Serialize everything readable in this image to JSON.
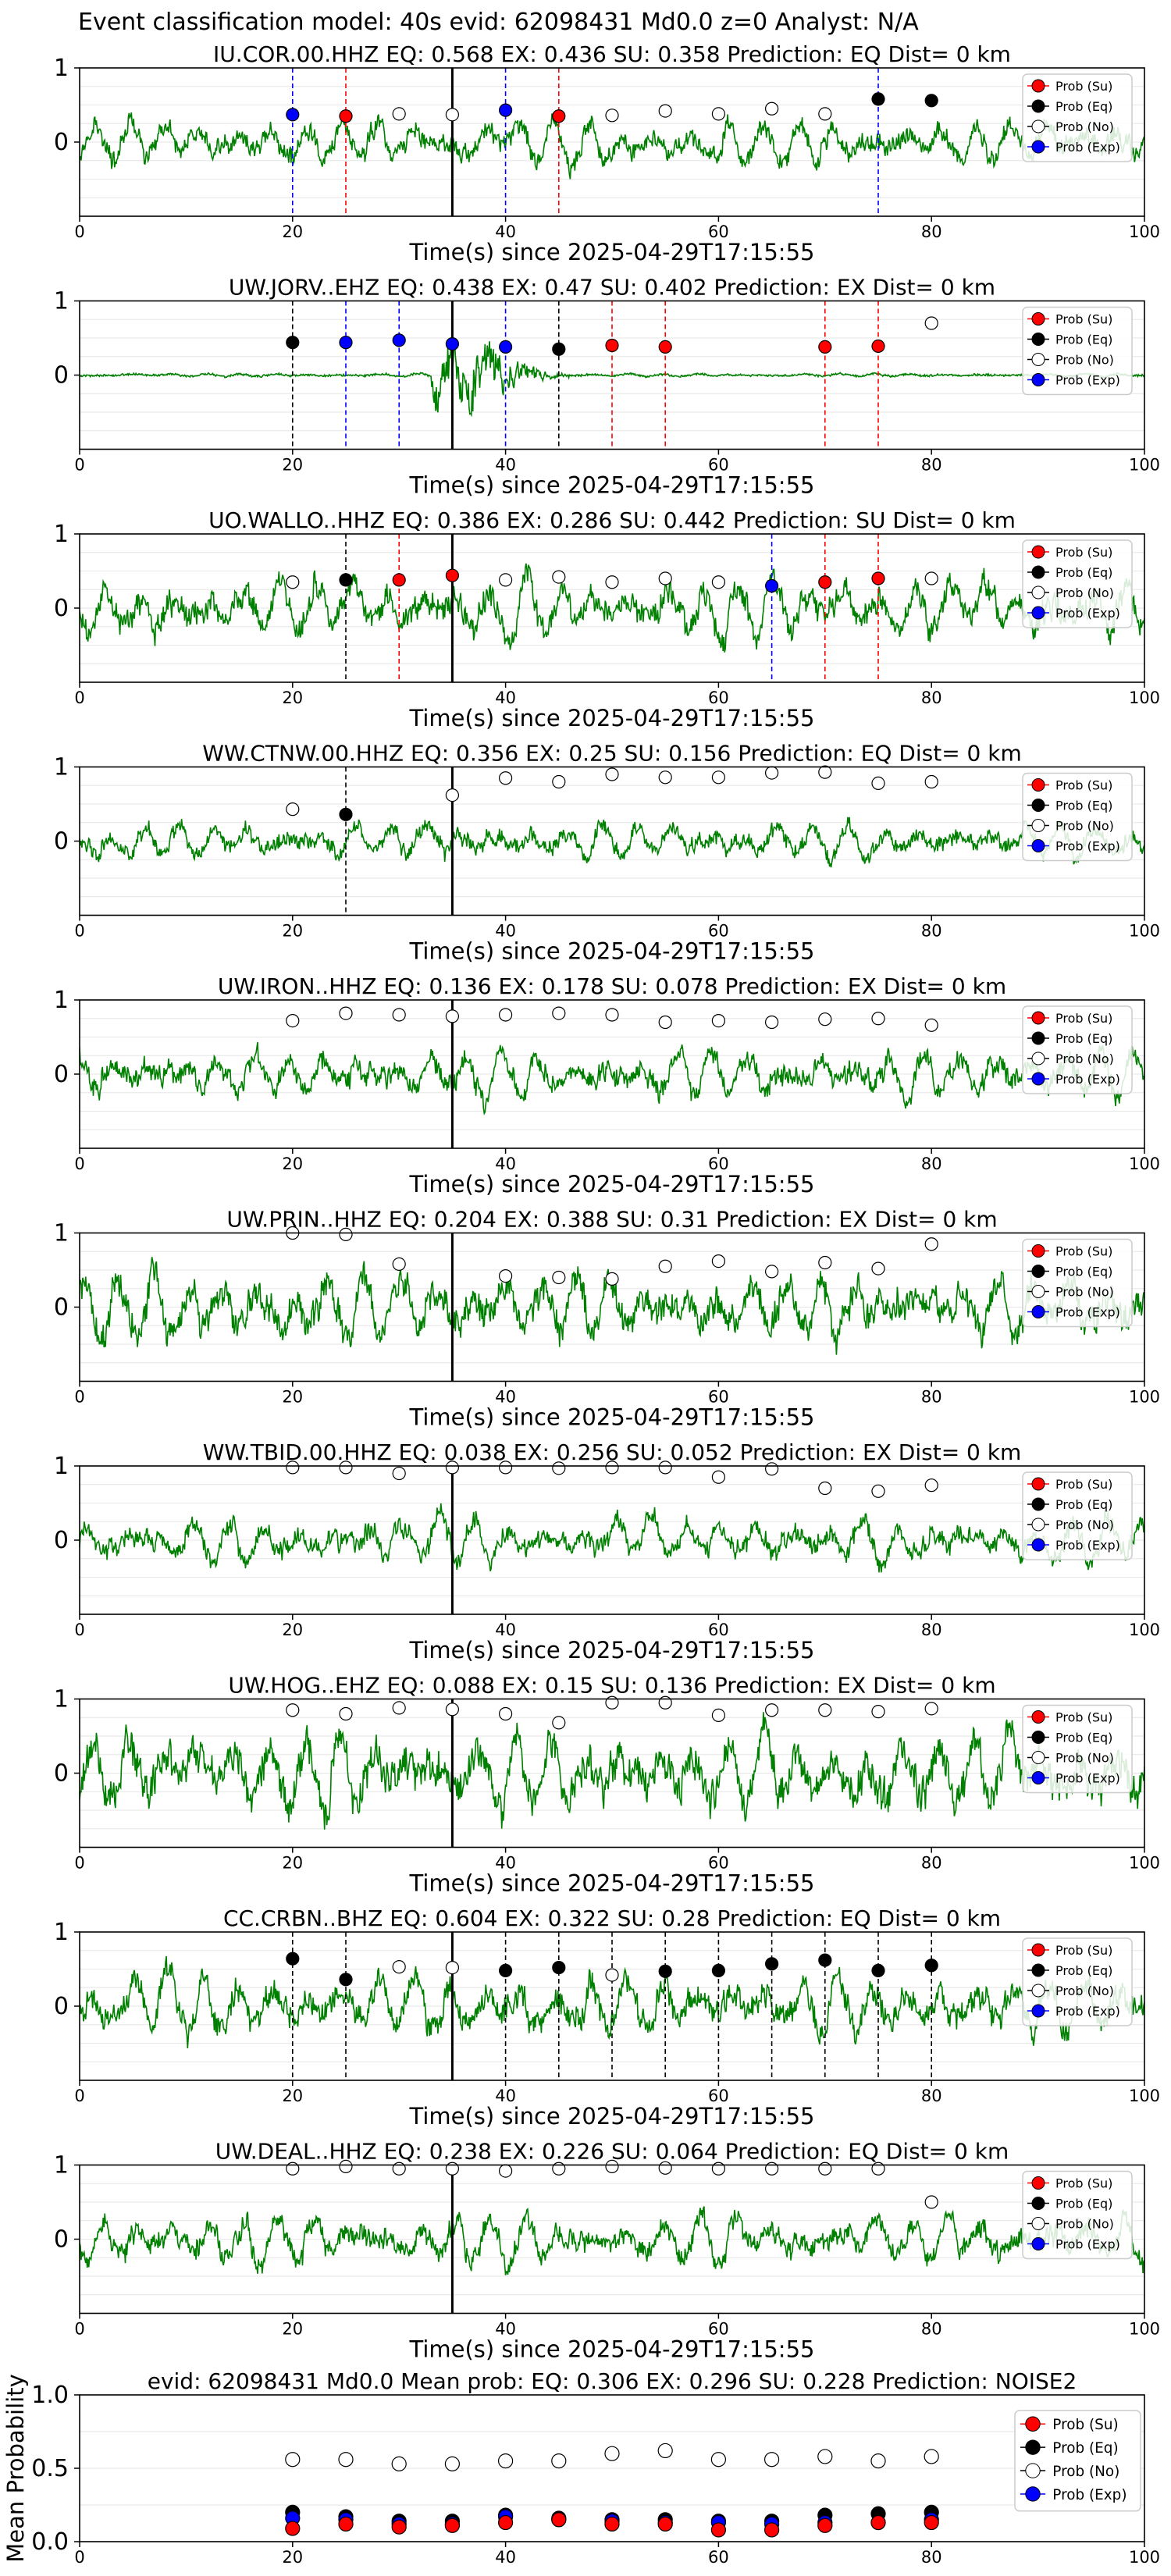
{
  "figure": {
    "suptitle": "Event classification model: 40s evid: 62098431 Md0.0 z=0 Analyst: N/A"
  },
  "legend_labels": [
    "Prob (Su)",
    "Prob (Eq)",
    "Prob (No)",
    "Prob (Exp)"
  ],
  "colors": {
    "su": "#ff0000",
    "eq": "#000000",
    "no": "#ffffff",
    "exp": "#0000ff",
    "waveform": "#008000",
    "su_line": "#ff0000",
    "eq_line": "#000000",
    "exp_line": "#0000ff"
  },
  "chart_data": [
    {
      "type": "line",
      "title": "IU.COR.00.HHZ   EQ: 0.568  EX: 0.436  SU: 0.358   Prediction: EQ    Dist= 0 km",
      "xlabel": "Time(s) since 2025-04-29T17:15:55",
      "xlim": [
        0,
        100
      ],
      "ylim": [
        -1,
        1
      ],
      "xticks": [
        0,
        20,
        40,
        60,
        80,
        100
      ],
      "yticks": [
        0,
        1
      ],
      "origin_line_x": 35,
      "series": [
        {
          "key": "no",
          "x": [
            30,
            35,
            50,
            55,
            60,
            65,
            70
          ],
          "y": [
            0.38,
            0.37,
            0.36,
            0.42,
            0.38,
            0.45,
            0.38
          ]
        },
        {
          "key": "eq",
          "x": [
            75,
            80
          ],
          "y": [
            0.58,
            0.56
          ]
        },
        {
          "key": "su",
          "x": [
            25,
            45
          ],
          "y": [
            0.35,
            0.35
          ]
        },
        {
          "key": "exp",
          "x": [
            20,
            40
          ],
          "y": [
            0.37,
            0.43
          ]
        }
      ],
      "vlines": [
        {
          "x": 20,
          "key": "exp_line"
        },
        {
          "x": 25,
          "key": "su_line"
        },
        {
          "x": 40,
          "key": "exp_line"
        },
        {
          "x": 45,
          "key": "su_line"
        },
        {
          "x": 75,
          "key": "exp_line"
        }
      ]
    },
    {
      "type": "line",
      "title": "UW.JORV..EHZ   EQ: 0.438  EX: 0.47  SU: 0.402   Prediction: EX    Dist= 0 km",
      "xlabel": "Time(s) since 2025-04-29T17:15:55",
      "xlim": [
        0,
        100
      ],
      "ylim": [
        -1,
        1
      ],
      "xticks": [
        0,
        20,
        40,
        60,
        80,
        100
      ],
      "yticks": [
        0,
        1
      ],
      "origin_line_x": 35,
      "series": [
        {
          "key": "no",
          "x": [
            80
          ],
          "y": [
            0.7
          ]
        },
        {
          "key": "eq",
          "x": [
            20,
            45
          ],
          "y": [
            0.44,
            0.35
          ]
        },
        {
          "key": "su",
          "x": [
            50,
            55,
            70,
            75
          ],
          "y": [
            0.4,
            0.38,
            0.38,
            0.39
          ]
        },
        {
          "key": "exp",
          "x": [
            25,
            30,
            35,
            40
          ],
          "y": [
            0.44,
            0.47,
            0.42,
            0.38
          ]
        }
      ],
      "vlines": [
        {
          "x": 20,
          "key": "eq_line"
        },
        {
          "x": 25,
          "key": "exp_line"
        },
        {
          "x": 30,
          "key": "exp_line"
        },
        {
          "x": 40,
          "key": "exp_line"
        },
        {
          "x": 45,
          "key": "eq_line"
        },
        {
          "x": 50,
          "key": "su_line"
        },
        {
          "x": 55,
          "key": "su_line"
        },
        {
          "x": 70,
          "key": "su_line"
        },
        {
          "x": 75,
          "key": "su_line"
        }
      ]
    },
    {
      "type": "line",
      "title": "UO.WALLO..HHZ   EQ: 0.386  EX: 0.286  SU: 0.442   Prediction: SU    Dist= 0 km",
      "xlabel": "Time(s) since 2025-04-29T17:15:55",
      "xlim": [
        0,
        100
      ],
      "ylim": [
        -1,
        1
      ],
      "xticks": [
        0,
        20,
        40,
        60,
        80,
        100
      ],
      "yticks": [
        0,
        1
      ],
      "origin_line_x": 35,
      "series": [
        {
          "key": "no",
          "x": [
            20,
            40,
            45,
            50,
            55,
            60,
            80
          ],
          "y": [
            0.35,
            0.38,
            0.42,
            0.35,
            0.4,
            0.35,
            0.4
          ]
        },
        {
          "key": "eq",
          "x": [
            25
          ],
          "y": [
            0.38
          ]
        },
        {
          "key": "su",
          "x": [
            30,
            35,
            70,
            75
          ],
          "y": [
            0.38,
            0.44,
            0.35,
            0.4
          ]
        },
        {
          "key": "exp",
          "x": [
            65
          ],
          "y": [
            0.3
          ]
        }
      ],
      "vlines": [
        {
          "x": 25,
          "key": "eq_line"
        },
        {
          "x": 30,
          "key": "su_line"
        },
        {
          "x": 65,
          "key": "exp_line"
        },
        {
          "x": 70,
          "key": "su_line"
        },
        {
          "x": 75,
          "key": "su_line"
        }
      ]
    },
    {
      "type": "line",
      "title": "WW.CTNW.00.HHZ   EQ: 0.356  EX: 0.25  SU: 0.156   Prediction: EQ    Dist= 0 km",
      "xlabel": "Time(s) since 2025-04-29T17:15:55",
      "xlim": [
        0,
        100
      ],
      "ylim": [
        -1,
        1
      ],
      "xticks": [
        0,
        20,
        40,
        60,
        80,
        100
      ],
      "yticks": [
        0,
        1
      ],
      "origin_line_x": 35,
      "series": [
        {
          "key": "no",
          "x": [
            20,
            35,
            40,
            45,
            50,
            55,
            60,
            65,
            70,
            75,
            80
          ],
          "y": [
            0.43,
            0.62,
            0.85,
            0.8,
            0.9,
            0.86,
            0.86,
            0.92,
            0.93,
            0.78,
            0.8
          ]
        },
        {
          "key": "eq",
          "x": [
            25
          ],
          "y": [
            0.36
          ]
        },
        {
          "key": "su",
          "x": [],
          "y": []
        },
        {
          "key": "exp",
          "x": [],
          "y": []
        }
      ],
      "vlines": [
        {
          "x": 25,
          "key": "eq_line"
        }
      ]
    },
    {
      "type": "line",
      "title": "UW.IRON..HHZ   EQ: 0.136  EX: 0.178  SU: 0.078   Prediction: EX    Dist= 0 km",
      "xlabel": "Time(s) since 2025-04-29T17:15:55",
      "xlim": [
        0,
        100
      ],
      "ylim": [
        -1,
        1
      ],
      "xticks": [
        0,
        20,
        40,
        60,
        80,
        100
      ],
      "yticks": [
        0,
        1
      ],
      "origin_line_x": 35,
      "series": [
        {
          "key": "no",
          "x": [
            20,
            25,
            30,
            35,
            40,
            45,
            50,
            55,
            60,
            65,
            70,
            75,
            80
          ],
          "y": [
            0.72,
            0.82,
            0.8,
            0.78,
            0.8,
            0.82,
            0.8,
            0.7,
            0.72,
            0.7,
            0.74,
            0.75,
            0.66
          ]
        },
        {
          "key": "eq",
          "x": [],
          "y": []
        },
        {
          "key": "su",
          "x": [],
          "y": []
        },
        {
          "key": "exp",
          "x": [],
          "y": []
        }
      ],
      "vlines": []
    },
    {
      "type": "line",
      "title": "UW.PRIN..HHZ   EQ: 0.204  EX: 0.388  SU: 0.31   Prediction: EX    Dist= 0 km",
      "xlabel": "Time(s) since 2025-04-29T17:15:55",
      "xlim": [
        0,
        100
      ],
      "ylim": [
        -1,
        1
      ],
      "xticks": [
        0,
        20,
        40,
        60,
        80,
        100
      ],
      "yticks": [
        0,
        1
      ],
      "origin_line_x": 35,
      "series": [
        {
          "key": "no",
          "x": [
            20,
            25,
            30,
            40,
            45,
            50,
            55,
            60,
            65,
            70,
            75,
            80
          ],
          "y": [
            1.0,
            0.98,
            0.58,
            0.42,
            0.4,
            0.38,
            0.55,
            0.62,
            0.48,
            0.6,
            0.52,
            0.85
          ]
        },
        {
          "key": "eq",
          "x": [],
          "y": []
        },
        {
          "key": "su",
          "x": [],
          "y": []
        },
        {
          "key": "exp",
          "x": [],
          "y": []
        }
      ],
      "vlines": []
    },
    {
      "type": "line",
      "title": "WW.TBID.00.HHZ   EQ: 0.038  EX: 0.256  SU: 0.052   Prediction: EX    Dist= 0 km",
      "xlabel": "Time(s) since 2025-04-29T17:15:55",
      "xlim": [
        0,
        100
      ],
      "ylim": [
        -1,
        1
      ],
      "xticks": [
        0,
        20,
        40,
        60,
        80,
        100
      ],
      "yticks": [
        0,
        1
      ],
      "origin_line_x": 35,
      "series": [
        {
          "key": "no",
          "x": [
            20,
            25,
            30,
            35,
            40,
            45,
            50,
            55,
            60,
            65,
            70,
            75,
            80
          ],
          "y": [
            0.98,
            0.98,
            0.9,
            0.98,
            0.98,
            0.97,
            0.98,
            0.98,
            0.85,
            0.96,
            0.7,
            0.66,
            0.74
          ]
        },
        {
          "key": "eq",
          "x": [],
          "y": []
        },
        {
          "key": "su",
          "x": [],
          "y": []
        },
        {
          "key": "exp",
          "x": [],
          "y": []
        }
      ],
      "vlines": []
    },
    {
      "type": "line",
      "title": "UW.HOG..EHZ   EQ: 0.088  EX: 0.15  SU: 0.136   Prediction: EX    Dist= 0 km",
      "xlabel": "Time(s) since 2025-04-29T17:15:55",
      "xlim": [
        0,
        100
      ],
      "ylim": [
        -1,
        1
      ],
      "xticks": [
        0,
        20,
        40,
        60,
        80,
        100
      ],
      "yticks": [
        0,
        1
      ],
      "origin_line_x": 35,
      "series": [
        {
          "key": "no",
          "x": [
            20,
            25,
            30,
            35,
            40,
            45,
            50,
            55,
            60,
            65,
            70,
            75,
            80
          ],
          "y": [
            0.85,
            0.8,
            0.88,
            0.86,
            0.8,
            0.68,
            0.95,
            0.95,
            0.78,
            0.85,
            0.85,
            0.83,
            0.87
          ]
        },
        {
          "key": "eq",
          "x": [],
          "y": []
        },
        {
          "key": "su",
          "x": [],
          "y": []
        },
        {
          "key": "exp",
          "x": [],
          "y": []
        }
      ],
      "vlines": []
    },
    {
      "type": "line",
      "title": "CC.CRBN..BHZ   EQ: 0.604  EX: 0.322  SU: 0.28   Prediction: EQ    Dist= 0 km",
      "xlabel": "Time(s) since 2025-04-29T17:15:55",
      "xlim": [
        0,
        100
      ],
      "ylim": [
        -1,
        1
      ],
      "xticks": [
        0,
        20,
        40,
        60,
        80,
        100
      ],
      "yticks": [
        0,
        1
      ],
      "origin_line_x": 35,
      "series": [
        {
          "key": "no",
          "x": [
            30,
            35,
            50
          ],
          "y": [
            0.53,
            0.52,
            0.42
          ]
        },
        {
          "key": "eq",
          "x": [
            20,
            25,
            40,
            45,
            55,
            60,
            65,
            70,
            75,
            80
          ],
          "y": [
            0.64,
            0.36,
            0.48,
            0.52,
            0.47,
            0.48,
            0.57,
            0.62,
            0.48,
            0.55
          ]
        },
        {
          "key": "su",
          "x": [],
          "y": []
        },
        {
          "key": "exp",
          "x": [],
          "y": []
        }
      ],
      "vlines": [
        {
          "x": 20,
          "key": "eq_line"
        },
        {
          "x": 25,
          "key": "eq_line"
        },
        {
          "x": 40,
          "key": "eq_line"
        },
        {
          "x": 45,
          "key": "eq_line"
        },
        {
          "x": 50,
          "key": "eq_line"
        },
        {
          "x": 55,
          "key": "eq_line"
        },
        {
          "x": 60,
          "key": "eq_line"
        },
        {
          "x": 65,
          "key": "eq_line"
        },
        {
          "x": 70,
          "key": "eq_line"
        },
        {
          "x": 75,
          "key": "eq_line"
        },
        {
          "x": 80,
          "key": "eq_line"
        }
      ]
    },
    {
      "type": "line",
      "title": "UW.DEAL..HHZ   EQ: 0.238  EX: 0.226  SU: 0.064   Prediction: EQ    Dist= 0 km",
      "xlabel": "Time(s) since 2025-04-29T17:15:55",
      "xlim": [
        0,
        100
      ],
      "ylim": [
        -1,
        1
      ],
      "xticks": [
        0,
        20,
        40,
        60,
        80,
        100
      ],
      "yticks": [
        0,
        1
      ],
      "origin_line_x": 35,
      "series": [
        {
          "key": "no",
          "x": [
            20,
            25,
            30,
            35,
            40,
            45,
            50,
            55,
            60,
            65,
            70,
            75,
            80
          ],
          "y": [
            0.95,
            0.98,
            0.95,
            0.95,
            0.92,
            0.95,
            0.98,
            0.96,
            0.95,
            0.95,
            0.95,
            0.95,
            0.5
          ]
        },
        {
          "key": "eq",
          "x": [],
          "y": []
        },
        {
          "key": "su",
          "x": [],
          "y": []
        },
        {
          "key": "exp",
          "x": [],
          "y": []
        }
      ],
      "vlines": []
    },
    {
      "type": "scatter",
      "title": "evid: 62098431  Md0.0   Mean prob:   EQ: 0.306  EX: 0.296  SU: 0.228   Prediction: NOISE2",
      "xlabel": "",
      "ylabel": "Mean Probability",
      "xlim": [
        0,
        100
      ],
      "ylim": [
        0,
        1
      ],
      "xticks": [
        0,
        20,
        40,
        60,
        80,
        100
      ],
      "yticks": [
        0.0,
        0.5,
        1.0
      ],
      "series": [
        {
          "key": "no",
          "x": [
            20,
            25,
            30,
            35,
            40,
            45,
            50,
            55,
            60,
            65,
            70,
            75,
            80
          ],
          "y": [
            0.56,
            0.56,
            0.53,
            0.53,
            0.55,
            0.55,
            0.6,
            0.62,
            0.56,
            0.56,
            0.58,
            0.55,
            0.58
          ]
        },
        {
          "key": "eq",
          "x": [
            20,
            25,
            30,
            35,
            40,
            45,
            50,
            55,
            60,
            65,
            70,
            75,
            80
          ],
          "y": [
            0.2,
            0.17,
            0.14,
            0.14,
            0.18,
            0.16,
            0.15,
            0.15,
            0.14,
            0.14,
            0.18,
            0.19,
            0.2
          ]
        },
        {
          "key": "exp",
          "x": [
            20,
            25,
            30,
            35,
            40,
            45,
            50,
            55,
            60,
            65,
            70,
            75,
            80
          ],
          "y": [
            0.16,
            0.15,
            0.12,
            0.12,
            0.17,
            0.15,
            0.14,
            0.13,
            0.13,
            0.12,
            0.13,
            0.13,
            0.15
          ]
        },
        {
          "key": "su",
          "x": [
            20,
            25,
            30,
            35,
            40,
            45,
            50,
            55,
            60,
            65,
            70,
            75,
            80
          ],
          "y": [
            0.09,
            0.12,
            0.1,
            0.11,
            0.13,
            0.15,
            0.12,
            0.12,
            0.08,
            0.08,
            0.11,
            0.13,
            0.13
          ]
        }
      ],
      "vlines": []
    }
  ]
}
